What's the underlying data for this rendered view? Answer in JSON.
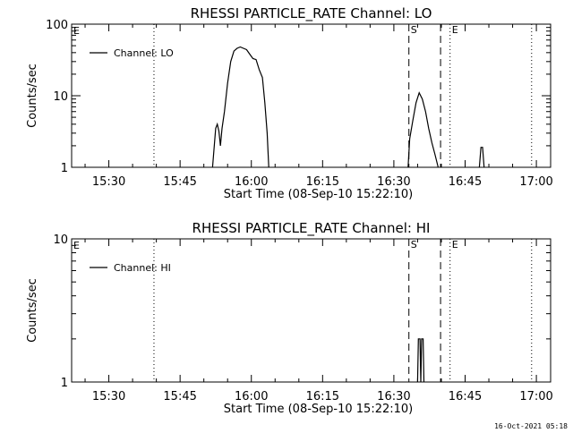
{
  "timestamp": "16-Oct-2021 05:18",
  "chart_data": [
    {
      "type": "line",
      "title": "RHESSI PARTICLE_RATE Channel: LO",
      "xlabel": "Start Time (08-Sep-10 15:22:10)",
      "ylabel": "Counts/sec",
      "yscale": "log",
      "xlim": [
        "15:22:10",
        "17:03:00"
      ],
      "ylim": [
        1,
        100
      ],
      "x_ticks": [
        "15:30",
        "15:45",
        "16:00",
        "16:15",
        "16:30",
        "16:45",
        "17:00"
      ],
      "y_ticks": [
        {
          "value": 1,
          "label": "1"
        },
        {
          "value": 10,
          "label": "10"
        },
        {
          "value": 100,
          "label": "100"
        }
      ],
      "legend": {
        "label": "Channel: LO",
        "position": "top-left"
      },
      "markers": [
        {
          "time": "15:39:30",
          "style": "dotted",
          "label": ""
        },
        {
          "time": "16:33:10",
          "style": "dashed",
          "label": "S"
        },
        {
          "time": "16:39:50",
          "style": "dashed",
          "label": ""
        },
        {
          "time": "16:41:50",
          "style": "dotted",
          "label": "E"
        },
        {
          "time": "16:59:00",
          "style": "dotted",
          "label": ""
        }
      ],
      "corner_labels": [
        "E"
      ],
      "series": [
        {
          "segments": [
            [
              [
                "15:51:50",
                1
              ],
              [
                "15:52:30",
                3.5
              ],
              [
                "15:52:50",
                4
              ],
              [
                "15:53:10",
                3.2
              ],
              [
                "15:53:30",
                2
              ],
              [
                "15:53:50",
                3.5
              ],
              [
                "15:54:20",
                6
              ],
              [
                "15:55:00",
                15
              ],
              [
                "15:55:40",
                30
              ],
              [
                "15:56:20",
                42
              ],
              [
                "15:57:00",
                46
              ],
              [
                "15:57:40",
                48
              ],
              [
                "15:58:20",
                46
              ],
              [
                "15:59:00",
                44
              ],
              [
                "15:59:40",
                38
              ],
              [
                "16:00:20",
                33
              ],
              [
                "16:01:00",
                32
              ],
              [
                "16:01:40",
                23
              ],
              [
                "16:02:20",
                18
              ],
              [
                "16:02:50",
                8
              ],
              [
                "16:03:20",
                3
              ],
              [
                "16:03:40",
                1
              ]
            ],
            [
              [
                "16:33:00",
                1
              ],
              [
                "16:33:20",
                2.5
              ],
              [
                "16:34:00",
                4.5
              ],
              [
                "16:34:40",
                8
              ],
              [
                "16:35:20",
                11
              ],
              [
                "16:36:00",
                9
              ],
              [
                "16:36:40",
                6
              ],
              [
                "16:37:20",
                3.5
              ],
              [
                "16:38:00",
                2.2
              ],
              [
                "16:38:40",
                1.5
              ],
              [
                "16:39:20",
                1
              ]
            ],
            [
              [
                "16:48:00",
                1
              ],
              [
                "16:48:20",
                1.9
              ],
              [
                "16:48:40",
                1.9
              ],
              [
                "16:49:00",
                1
              ]
            ]
          ]
        }
      ]
    },
    {
      "type": "line",
      "title": "RHESSI PARTICLE_RATE Channel: HI",
      "xlabel": "Start Time (08-Sep-10 15:22:10)",
      "ylabel": "Counts/sec",
      "yscale": "log",
      "xlim": [
        "15:22:10",
        "17:03:00"
      ],
      "ylim": [
        1,
        10
      ],
      "x_ticks": [
        "15:30",
        "15:45",
        "16:00",
        "16:15",
        "16:30",
        "16:45",
        "17:00"
      ],
      "y_ticks": [
        {
          "value": 1,
          "label": "1"
        },
        {
          "value": 10,
          "label": "10"
        }
      ],
      "legend": {
        "label": "Channel: HI",
        "position": "top-left"
      },
      "markers": [
        {
          "time": "15:39:30",
          "style": "dotted",
          "label": ""
        },
        {
          "time": "16:33:10",
          "style": "dashed",
          "label": "S"
        },
        {
          "time": "16:39:50",
          "style": "dashed",
          "label": ""
        },
        {
          "time": "16:41:50",
          "style": "dotted",
          "label": "E"
        },
        {
          "time": "16:59:00",
          "style": "dotted",
          "label": ""
        }
      ],
      "corner_labels": [
        "E"
      ],
      "series": [
        {
          "segments": [
            [
              [
                "16:35:00",
                1
              ],
              [
                "16:35:10",
                2
              ],
              [
                "16:35:30",
                2
              ],
              [
                "16:35:40",
                1
              ],
              [
                "16:35:50",
                2
              ],
              [
                "16:36:10",
                2
              ],
              [
                "16:36:20",
                1
              ]
            ]
          ]
        }
      ]
    }
  ]
}
